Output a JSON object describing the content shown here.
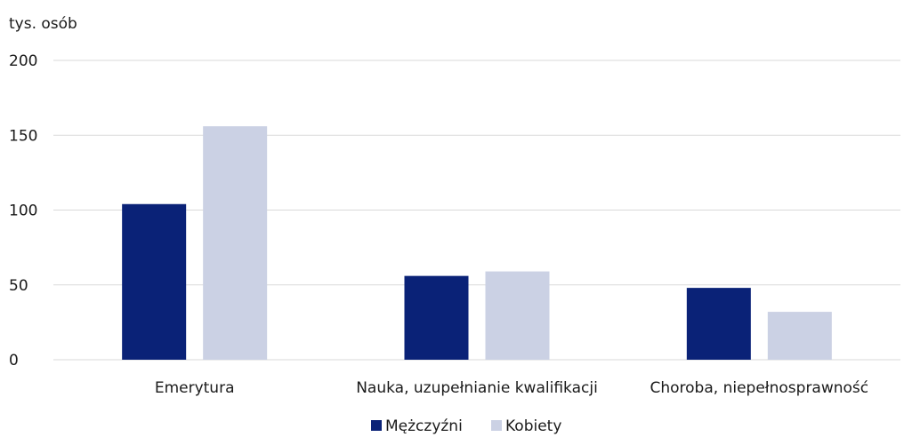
{
  "chart_data": {
    "type": "bar",
    "unit_label": "tys. osób",
    "categories": [
      "Emerytura",
      "Nauka, uzupełnianie kwalifikacji",
      "Choroba, niepełnosprawność"
    ],
    "series": [
      {
        "name": "Mężczyźni",
        "color": "#0a2277",
        "values": [
          104,
          56,
          48
        ]
      },
      {
        "name": "Kobiety",
        "color": "#cbd1e4",
        "values": [
          156,
          59,
          32
        ]
      }
    ],
    "ylim": [
      0,
      200
    ],
    "yticks": [
      "0",
      "50",
      "100",
      "150",
      "200"
    ],
    "grid": true,
    "legend_position": "bottom-center"
  }
}
